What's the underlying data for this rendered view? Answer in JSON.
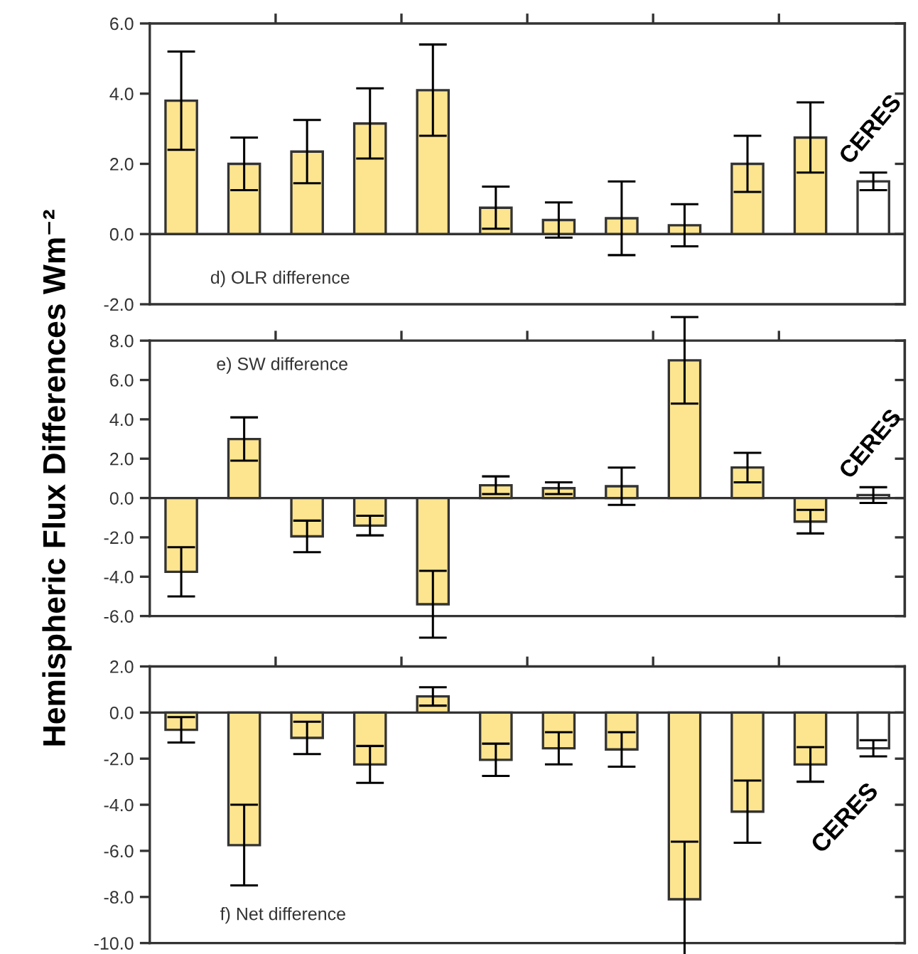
{
  "chart_data": [
    {
      "type": "bar",
      "categories": [
        null,
        null,
        null,
        null,
        null,
        null,
        null,
        null,
        null,
        null,
        null,
        "CERES"
      ],
      "values": [
        3.8,
        2.0,
        2.35,
        3.15,
        4.1,
        0.75,
        0.4,
        0.45,
        0.25,
        2.0,
        2.75,
        1.5
      ],
      "errors": [
        1.4,
        0.75,
        0.9,
        1.0,
        1.3,
        0.6,
        0.5,
        1.05,
        0.6,
        0.8,
        1.0,
        0.25
      ],
      "colors": [
        "#fde58f",
        "#fde58f",
        "#fde58f",
        "#fde58f",
        "#fde58f",
        "#fde58f",
        "#fde58f",
        "#fde58f",
        "#fde58f",
        "#fde58f",
        "#fde58f",
        "#ffffff"
      ],
      "ylim": [
        -2,
        6
      ],
      "yticks": [
        {
          "value": -2,
          "label": "-2.0"
        },
        {
          "value": 0,
          "label": "0.0"
        },
        {
          "value": 2,
          "label": "2.0"
        },
        {
          "value": 4,
          "label": "4.0"
        },
        {
          "value": 6,
          "label": "6.0"
        }
      ],
      "annotations": [
        "d) OLR difference"
      ]
    },
    {
      "type": "bar",
      "ylabel": "Hemispheric Flux Differences Wm⁻²",
      "categories": [
        null,
        null,
        null,
        null,
        null,
        null,
        null,
        null,
        null,
        null,
        null,
        "CERES"
      ],
      "values": [
        -3.75,
        3.0,
        -1.95,
        -1.4,
        -5.4,
        0.65,
        0.5,
        0.6,
        7.0,
        1.55,
        -1.2,
        0.15
      ],
      "errors": [
        1.25,
        1.1,
        0.8,
        0.5,
        1.7,
        0.45,
        0.3,
        0.95,
        2.2,
        0.75,
        0.6,
        0.4
      ],
      "colors": [
        "#fde58f",
        "#fde58f",
        "#fde58f",
        "#fde58f",
        "#fde58f",
        "#fde58f",
        "#fde58f",
        "#fde58f",
        "#fde58f",
        "#fde58f",
        "#fde58f",
        "#ffffff"
      ],
      "ylim": [
        -6,
        8
      ],
      "yticks": [
        {
          "value": -6,
          "label": "-6.0"
        },
        {
          "value": -4,
          "label": "-4.0"
        },
        {
          "value": -2,
          "label": "-2.0"
        },
        {
          "value": 0,
          "label": "0.0"
        },
        {
          "value": 2,
          "label": "2.0"
        },
        {
          "value": 4,
          "label": "4.0"
        },
        {
          "value": 6,
          "label": "6.0"
        },
        {
          "value": 8,
          "label": "8.0"
        }
      ],
      "annotations": [
        "e) SW difference"
      ]
    },
    {
      "type": "bar",
      "categories": [
        null,
        null,
        null,
        null,
        null,
        null,
        null,
        null,
        null,
        null,
        null,
        "CERES"
      ],
      "values": [
        -0.75,
        -5.75,
        -1.1,
        -2.25,
        0.7,
        -2.05,
        -1.55,
        -1.6,
        -8.1,
        -4.3,
        -2.25,
        -1.55
      ],
      "errors": [
        0.55,
        1.75,
        0.7,
        0.8,
        0.4,
        0.7,
        0.7,
        0.75,
        2.5,
        1.35,
        0.75,
        0.35
      ],
      "colors": [
        "#fde58f",
        "#fde58f",
        "#fde58f",
        "#fde58f",
        "#fde58f",
        "#fde58f",
        "#fde58f",
        "#fde58f",
        "#fde58f",
        "#fde58f",
        "#fde58f",
        "#ffffff"
      ],
      "ylim": [
        -10,
        2
      ],
      "yticks": [
        {
          "value": -10,
          "label": "-10.0"
        },
        {
          "value": -8,
          "label": "-8.0"
        },
        {
          "value": -6,
          "label": "-6.0"
        },
        {
          "value": -4,
          "label": "-4.0"
        },
        {
          "value": -2,
          "label": "-2.0"
        },
        {
          "value": 0,
          "label": "0.0"
        },
        {
          "value": 2,
          "label": "2.0"
        }
      ],
      "annotations": [
        "f) Net difference"
      ]
    }
  ]
}
